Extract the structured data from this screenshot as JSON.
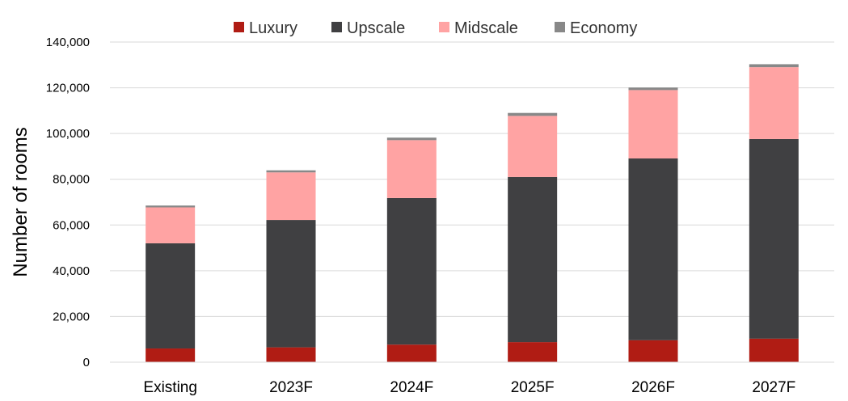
{
  "chart_data": {
    "type": "bar",
    "stacked": true,
    "categories": [
      "Existing",
      "2023F",
      "2024F",
      "2025F",
      "2026F",
      "2027F"
    ],
    "series": [
      {
        "name": "Luxury",
        "color": "#b01c14",
        "values": [
          6000,
          6500,
          7700,
          8800,
          9600,
          10300
        ]
      },
      {
        "name": "Upscale",
        "color": "#404042",
        "values": [
          46000,
          55700,
          64100,
          72200,
          79500,
          87300
        ]
      },
      {
        "name": "Midscale",
        "color": "#ffa3a3",
        "values": [
          15700,
          20800,
          25300,
          26700,
          29900,
          31400
        ]
      },
      {
        "name": "Economy",
        "color": "#888888",
        "values": [
          800,
          900,
          1100,
          1300,
          1100,
          1300
        ]
      }
    ],
    "ylabel": "Number of rooms",
    "ylim": [
      0,
      140000
    ],
    "yticks": [
      "0",
      "20,000",
      "40,000",
      "60,000",
      "80,000",
      "100,000",
      "120,000",
      "140,000"
    ],
    "grid": true,
    "legend_position": "top"
  }
}
